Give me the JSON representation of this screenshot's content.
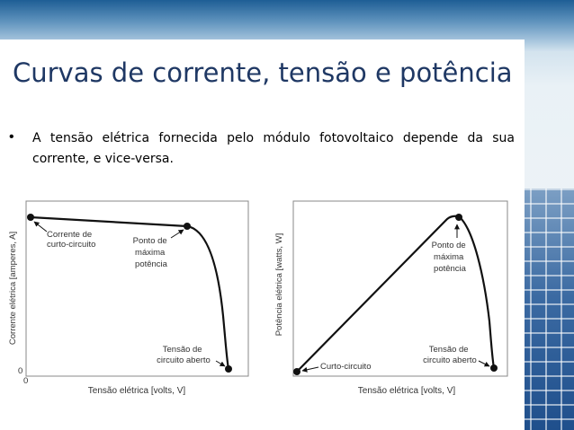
{
  "slide": {
    "title": "Curvas de corrente, tensão e potência",
    "bullet": "A tensão elétrica fornecida pelo módulo fotovoltaico depende da sua corrente, e vice-versa.",
    "bullet_symbol": "•"
  },
  "diagram_left": {
    "ylabel": "Corrente elétrica [amperes, A]",
    "xlabel": "Tensão elétrica [volts, V]",
    "origin_x": "0",
    "origin_y": "0",
    "short_circuit": [
      "Corrente de",
      "curto-circuito"
    ],
    "max_power": [
      "Ponto de",
      "máxima",
      "potência"
    ],
    "open_circuit": [
      "Tensão de",
      "circuito aberto"
    ]
  },
  "diagram_right": {
    "ylabel": "Potência elétrica [watts, W]",
    "xlabel": "Tensão elétrica [volts, V]",
    "short_circuit": "Curto-circuito",
    "max_power": [
      "Ponto de",
      "máxima",
      "potência"
    ],
    "open_circuit": [
      "Tensão de",
      "circuito aberto"
    ]
  },
  "colors": {
    "title": "#1f3864",
    "curve": "#111111"
  }
}
